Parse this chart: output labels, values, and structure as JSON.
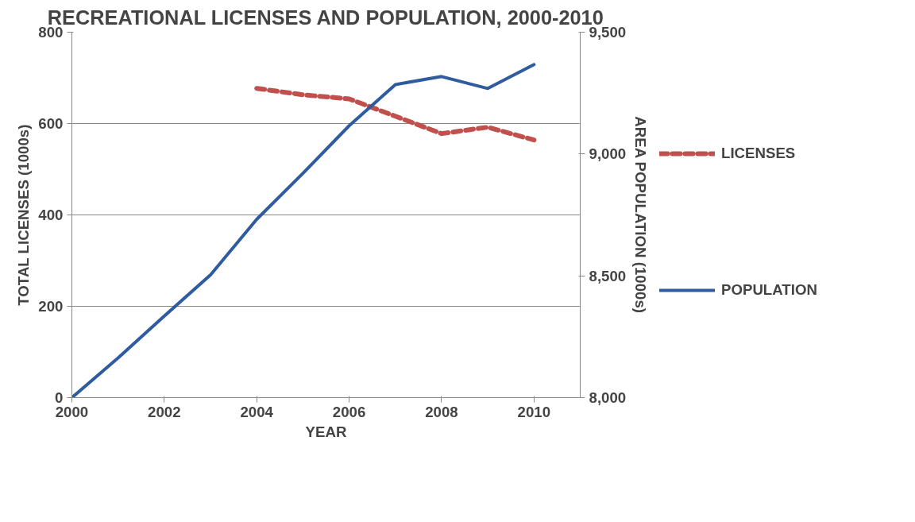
{
  "chart_data": {
    "type": "line",
    "title": "RECREATIONAL LICENSES AND POPULATION, 2000-2010",
    "xlabel": "YEAR",
    "ylabel": "TOTAL LICENSES (1000s)",
    "y2label": "AREA POPULATION (1000s)",
    "x": [
      2000,
      2001,
      2002,
      2003,
      2004,
      2005,
      2006,
      2007,
      2008,
      2009,
      2010
    ],
    "series": [
      {
        "name": "LICENSES",
        "color": "#c0504d",
        "line_style": "dashed",
        "values": [
          null,
          null,
          null,
          null,
          677,
          663,
          654,
          616,
          578,
          592,
          564
        ]
      },
      {
        "name": "POPULATION",
        "color": "#2e5c9e",
        "line_style": "solid",
        "axis": "y2",
        "values": [
          8000,
          8163,
          8335,
          8504,
          8732,
          8921,
          9116,
          9285,
          9318,
          9269,
          9367
        ]
      }
    ],
    "xlim": [
      2000,
      2011
    ],
    "xticks": [
      2000,
      2002,
      2004,
      2006,
      2008,
      2010
    ],
    "ylim": [
      0,
      800
    ],
    "yticks": [
      0,
      200,
      400,
      600,
      800
    ],
    "y2lim": [
      8000,
      9500
    ],
    "y2ticks": [
      {
        "value": 8000,
        "label": "8,000"
      },
      {
        "value": 8500,
        "label": "8,500"
      },
      {
        "value": 9000,
        "label": "9,000"
      },
      {
        "value": 9500,
        "label": "9,500"
      }
    ],
    "grid": "y",
    "legend": "right",
    "marker": "none"
  }
}
